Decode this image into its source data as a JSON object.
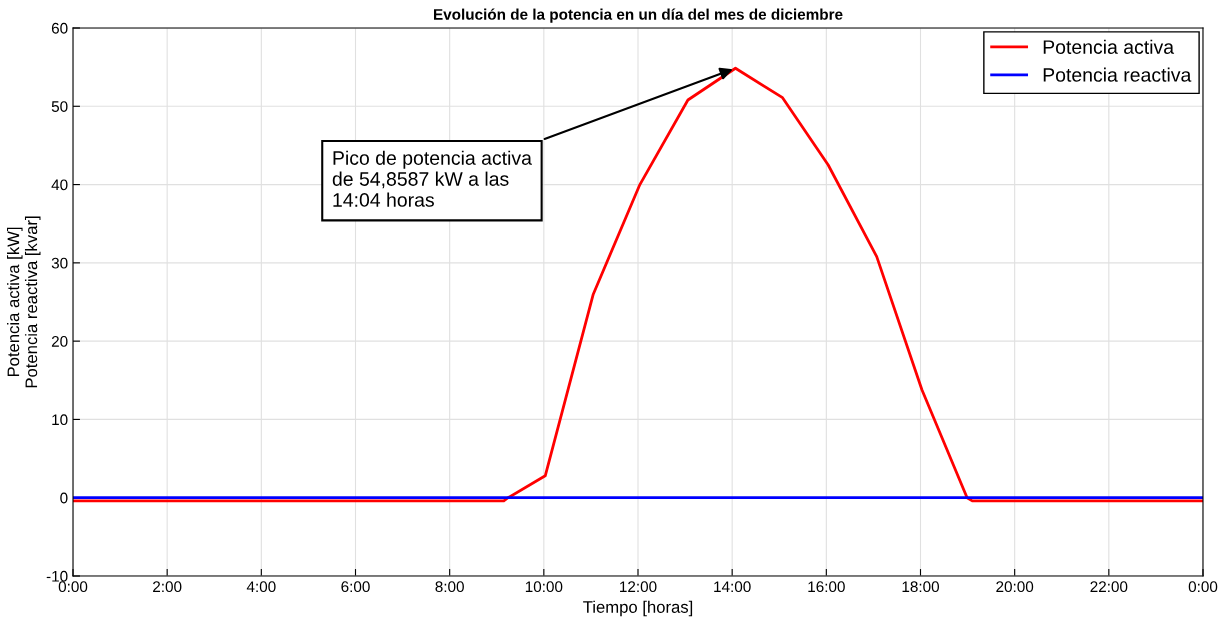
{
  "chart_data": {
    "type": "line",
    "title": "Evolución de la potencia en un día del mes de diciembre",
    "xlabel": "Tiempo [horas]",
    "ylabel": "Potencia activa [kW]\nPotencia reactiva [kvar]",
    "series": [
      {
        "name": "Potencia activa",
        "color": "#ff0000",
        "x": [
          0,
          4,
          8,
          9.15,
          9.24,
          10.03,
          11.05,
          12.04,
          13.06,
          14.07,
          15.07,
          16.04,
          17.07,
          18.03,
          18.99,
          19.1,
          22,
          24
        ],
        "values": [
          -0.4,
          -0.4,
          -0.4,
          -0.4,
          0,
          2.8,
          26,
          40,
          50.8,
          54.86,
          51.1,
          42.5,
          30.8,
          13.8,
          0,
          -0.4,
          -0.4,
          -0.4
        ]
      },
      {
        "name": "Potencia reactiva",
        "color": "#0000ff",
        "x": [
          0,
          2,
          4,
          6,
          8,
          10,
          12,
          14,
          16,
          18,
          20,
          22,
          24
        ],
        "values": [
          0,
          0,
          0,
          0,
          0,
          0,
          0,
          0,
          0,
          0,
          0,
          0,
          0
        ]
      }
    ],
    "xlim": [
      0,
      24
    ],
    "ylim": [
      -10,
      60
    ],
    "xticks": [
      {
        "value": 0,
        "label": "0:00"
      },
      {
        "value": 2,
        "label": "2:00"
      },
      {
        "value": 4,
        "label": "4:00"
      },
      {
        "value": 6,
        "label": "6:00"
      },
      {
        "value": 8,
        "label": "8:00"
      },
      {
        "value": 10,
        "label": "10:00"
      },
      {
        "value": 12,
        "label": "12:00"
      },
      {
        "value": 14,
        "label": "14:00"
      },
      {
        "value": 16,
        "label": "16:00"
      },
      {
        "value": 18,
        "label": "18:00"
      },
      {
        "value": 20,
        "label": "20:00"
      },
      {
        "value": 22,
        "label": "22:00"
      },
      {
        "value": 24,
        "label": "0:00"
      }
    ],
    "yticks": [
      -10,
      0,
      10,
      20,
      30,
      40,
      50,
      60
    ],
    "annotations": [
      {
        "text": "Pico de potencia activa\nde 54,8587 kW a las\n14:04 horas",
        "x": 14.07,
        "y": 54.86
      }
    ],
    "grid": true,
    "legend": "top right",
    "line_style": "solid",
    "marker": "none"
  }
}
